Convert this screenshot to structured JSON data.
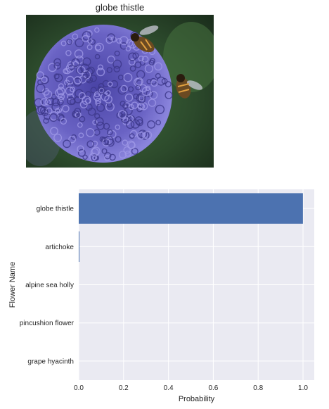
{
  "image_panel": {
    "title": "globe thistle",
    "palette": {
      "background": "#2c4a2c",
      "flower": "#6a63c4",
      "flower_dark": "#3c3789",
      "flower_light": "#9d97e6",
      "bee": "#6b4a22"
    }
  },
  "chart_data": {
    "type": "bar",
    "orientation": "horizontal",
    "categories": [
      "globe thistle",
      "artichoke",
      "alpine sea holly",
      "pincushion flower",
      "grape hyacinth"
    ],
    "values": [
      0.9995,
      0.0004,
      0.0001,
      2e-05,
      1e-05
    ],
    "xlabel": "Probability",
    "ylabel": "Flower Name",
    "xlim": [
      0,
      1.05
    ],
    "xticks": [
      0.0,
      0.2,
      0.4,
      0.6,
      0.8,
      1.0
    ],
    "xtick_labels": [
      "0.0",
      "0.2",
      "0.4",
      "0.6",
      "0.8",
      "1.0"
    ],
    "grid": true,
    "colors": {
      "bar": "#4c72b0",
      "plot_background": "#eaeaf2",
      "grid": "#ffffff"
    }
  }
}
